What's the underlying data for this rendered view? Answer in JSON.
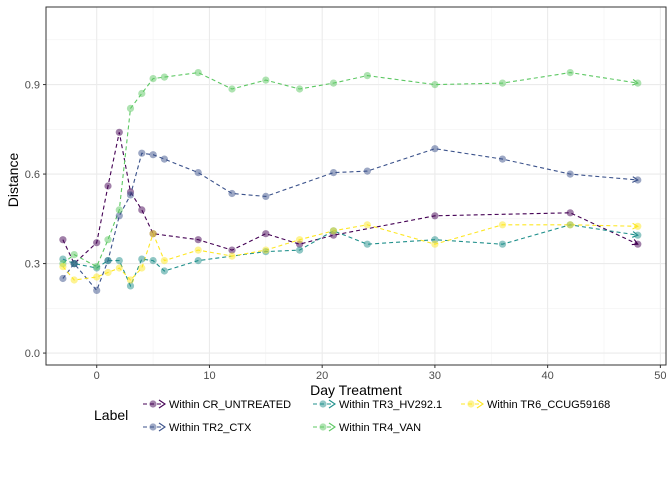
{
  "chart_data": {
    "type": "line",
    "title": "",
    "xlabel": "Day Treatment",
    "ylabel": "Distance",
    "xlim": [
      -4.5,
      50.5
    ],
    "ylim": [
      -0.04,
      1.16
    ],
    "xticks": [
      0,
      10,
      20,
      30,
      40,
      50
    ],
    "xtick_labels": [
      "0",
      "10",
      "20",
      "30",
      "40",
      "50"
    ],
    "yticks": [
      0.0,
      0.3,
      0.6,
      0.9
    ],
    "ytick_labels": [
      "0.0",
      "0.3",
      "0.6",
      "0.9"
    ],
    "grid": true,
    "legend": {
      "title": "Label",
      "position": "bottom"
    },
    "series": [
      {
        "name": "Within CR_UNTREATED",
        "color": "#440154",
        "x": [
          -3,
          -2,
          0,
          1,
          2,
          3,
          4,
          5,
          9,
          12,
          15,
          18,
          21,
          30,
          42,
          48
        ],
        "y": [
          0.38,
          0.3,
          0.37,
          0.56,
          0.74,
          0.54,
          0.48,
          0.4,
          0.38,
          0.345,
          0.4,
          0.365,
          0.395,
          0.46,
          0.47,
          0.365
        ]
      },
      {
        "name": "Within TR2_CTX",
        "color": "#3B528B",
        "x": [
          -3,
          -2,
          0,
          1,
          2,
          3,
          4,
          5,
          6,
          9,
          12,
          15,
          21,
          24,
          30,
          36,
          42,
          48
        ],
        "y": [
          0.25,
          0.3,
          0.21,
          0.31,
          0.46,
          0.53,
          0.67,
          0.665,
          0.65,
          0.605,
          0.535,
          0.525,
          0.605,
          0.61,
          0.685,
          0.65,
          0.6,
          0.58
        ]
      },
      {
        "name": "Within TR3_HV292.1",
        "color": "#21908C",
        "x": [
          -3,
          -2,
          0,
          1,
          2,
          3,
          4,
          5,
          6,
          9,
          15,
          18,
          21,
          24,
          30,
          36,
          42,
          48
        ],
        "y": [
          0.315,
          0.3,
          0.285,
          0.31,
          0.31,
          0.225,
          0.315,
          0.31,
          0.275,
          0.31,
          0.34,
          0.345,
          0.41,
          0.365,
          0.38,
          0.365,
          0.43,
          0.395
        ]
      },
      {
        "name": "Within TR4_VAN",
        "color": "#5DC863",
        "x": [
          -3,
          -2,
          0,
          1,
          2,
          3,
          4,
          5,
          6,
          9,
          12,
          15,
          18,
          21,
          24,
          30,
          36,
          42,
          48
        ],
        "y": [
          0.3,
          0.33,
          0.29,
          0.38,
          0.48,
          0.82,
          0.87,
          0.92,
          0.925,
          0.94,
          0.885,
          0.915,
          0.885,
          0.905,
          0.93,
          0.9,
          0.905,
          0.94,
          0.905
        ]
      },
      {
        "name": "Within TR6_CCUG59168",
        "color": "#FDE725",
        "x": [
          -3,
          -2,
          0,
          1,
          2,
          3,
          4,
          5,
          6,
          9,
          12,
          15,
          18,
          21,
          24,
          30,
          36,
          42,
          48
        ],
        "y": [
          0.29,
          0.245,
          0.255,
          0.27,
          0.285,
          0.245,
          0.285,
          0.4,
          0.31,
          0.345,
          0.325,
          0.345,
          0.38,
          0.41,
          0.43,
          0.365,
          0.43,
          0.43,
          0.425
        ]
      }
    ]
  }
}
